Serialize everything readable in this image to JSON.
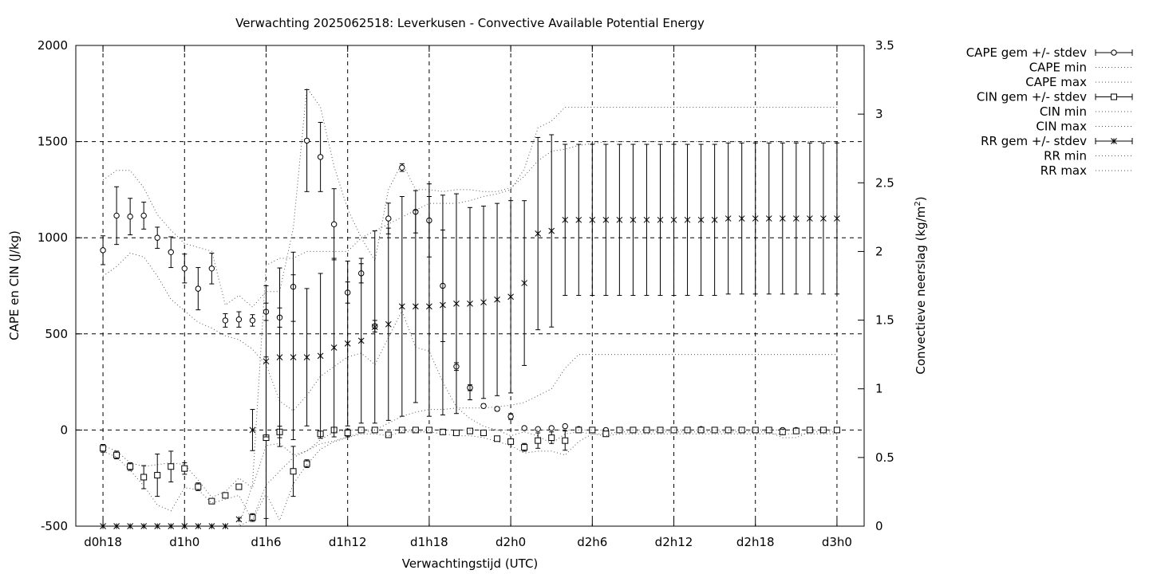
{
  "chart_data": {
    "type": "line",
    "title": "Verwachting 2025062518: Leverkusen - Convective Available Potential Energy",
    "xlabel": "Verwachtingstijd (UTC)",
    "ylabel": "CAPE en CIN (J/kg)",
    "y2label": "Convectieve neerslag (kg/m",
    "y2label_sup": "2",
    "y2label_end": ")",
    "xlim_hours": [
      -2,
      56
    ],
    "ylim": [
      -500,
      2000
    ],
    "y2lim": [
      0,
      3.5
    ],
    "grid": true,
    "legend_position": "top-right outside",
    "x_ticks": [
      {
        "h": 0,
        "label": "d0h18"
      },
      {
        "h": 6,
        "label": "d1h0"
      },
      {
        "h": 12,
        "label": "d1h6"
      },
      {
        "h": 18,
        "label": "d1h12"
      },
      {
        "h": 24,
        "label": "d1h18"
      },
      {
        "h": 30,
        "label": "d2h0"
      },
      {
        "h": 36,
        "label": "d2h6"
      },
      {
        "h": 42,
        "label": "d2h12"
      },
      {
        "h": 48,
        "label": "d2h18"
      },
      {
        "h": 54,
        "label": "d3h0"
      }
    ],
    "y_ticks": [
      "-500",
      "0",
      "500",
      "1000",
      "1500",
      "2000"
    ],
    "y2_ticks": [
      "0",
      "0.5",
      "1",
      "1.5",
      "2",
      "2.5",
      "3",
      "3.5"
    ],
    "x_hours": [
      0,
      1,
      2,
      3,
      4,
      5,
      6,
      7,
      8,
      9,
      10,
      11,
      12,
      13,
      14,
      15,
      16,
      17,
      18,
      19,
      20,
      21,
      22,
      23,
      24,
      25,
      26,
      27,
      28,
      29,
      30,
      31,
      32,
      33,
      34,
      35,
      36,
      37,
      38,
      39,
      40,
      41,
      42,
      43,
      44,
      45,
      46,
      47,
      48,
      49,
      50,
      51,
      52,
      53,
      54
    ],
    "series": [
      {
        "name": "CAPE gem +/- stdev",
        "axis": "y",
        "marker": "circle",
        "mean": [
          935,
          1115,
          1110,
          1115,
          1000,
          925,
          840,
          735,
          840,
          570,
          575,
          570,
          615,
          585,
          745,
          1505,
          1420,
          1070,
          715,
          815,
          540,
          1100,
          1365,
          1135,
          1090,
          750,
          330,
          220,
          125,
          110,
          70,
          10,
          5,
          10,
          20,
          5,
          0,
          0,
          0,
          0,
          0,
          0,
          0,
          0,
          5,
          0,
          0,
          0,
          0,
          0,
          0,
          0,
          0,
          0,
          0
        ],
        "err": [
          75,
          150,
          95,
          70,
          55,
          80,
          75,
          110,
          80,
          35,
          40,
          30,
          45,
          50,
          180,
          265,
          180,
          185,
          55,
          50,
          30,
          80,
          20,
          110,
          190,
          290,
          20,
          15,
          10,
          10,
          15,
          5,
          5,
          5,
          5,
          5,
          5,
          5,
          5,
          5,
          5,
          5,
          5,
          5,
          5,
          5,
          5,
          5,
          5,
          5,
          5,
          5,
          5,
          5,
          5
        ]
      },
      {
        "name": "CAPE min",
        "axis": "y",
        "values": [
          800,
          850,
          920,
          900,
          800,
          680,
          620,
          560,
          530,
          490,
          470,
          420,
          340,
          150,
          100,
          180,
          280,
          330,
          380,
          400,
          340,
          480,
          620,
          430,
          410,
          250,
          120,
          60,
          20,
          0,
          -30,
          -10,
          -30,
          -70,
          -20,
          -10,
          -20,
          -20,
          -10,
          -10,
          -10,
          -10,
          -10,
          -10,
          -10,
          -10,
          -10,
          -10,
          -10,
          -10,
          -40,
          -40,
          -10,
          -10,
          -10
        ]
      },
      {
        "name": "CAPE max",
        "axis": "y",
        "values": [
          1300,
          1350,
          1350,
          1260,
          1120,
          1040,
          970,
          950,
          930,
          650,
          700,
          640,
          720,
          720,
          1050,
          1780,
          1680,
          1370,
          1150,
          1000,
          880,
          1250,
          1390,
          1250,
          1250,
          1240,
          1250,
          1250,
          1240,
          1240,
          1260,
          1320,
          1400,
          1450,
          1460,
          1480,
          1490,
          1500,
          1500,
          1500,
          1500,
          1500,
          1500,
          1500,
          1500,
          1500,
          1500,
          1500,
          1500,
          1500,
          1500,
          1500,
          1500,
          1500,
          1500
        ]
      },
      {
        "name": "CIN gem +/- stdev",
        "axis": "y",
        "marker": "square",
        "mean": [
          -95,
          -130,
          -190,
          -245,
          -235,
          -190,
          -200,
          -295,
          -370,
          -340,
          -295,
          -455,
          -40,
          -10,
          -215,
          -175,
          -20,
          0,
          -15,
          0,
          0,
          -25,
          0,
          0,
          0,
          -10,
          -15,
          -5,
          -15,
          -45,
          -60,
          -90,
          -55,
          -40,
          -55,
          0,
          0,
          -20,
          0,
          0,
          0,
          0,
          0,
          0,
          0,
          0,
          0,
          0,
          0,
          0,
          -10,
          -5,
          0,
          0,
          0
        ],
        "err": [
          20,
          20,
          20,
          60,
          110,
          80,
          30,
          20,
          10,
          10,
          10,
          20,
          420,
          30,
          130,
          20,
          10,
          5,
          20,
          5,
          5,
          5,
          5,
          5,
          5,
          5,
          5,
          5,
          5,
          5,
          5,
          20,
          40,
          30,
          50,
          5,
          5,
          10,
          5,
          5,
          5,
          5,
          5,
          5,
          5,
          5,
          5,
          5,
          5,
          5,
          10,
          10,
          5,
          5,
          5
        ]
      },
      {
        "name": "CIN min",
        "axis": "y",
        "values": [
          -110,
          -140,
          -210,
          -290,
          -390,
          -420,
          -300,
          -310,
          -380,
          -360,
          -340,
          -470,
          -330,
          -470,
          -280,
          -180,
          -100,
          -60,
          -40,
          -20,
          -20,
          -30,
          -10,
          -10,
          -10,
          -20,
          -30,
          -30,
          -40,
          -60,
          -80,
          -120,
          -110,
          -110,
          -130,
          -60,
          -20,
          -30,
          -20,
          -20,
          -20,
          -20,
          -20,
          -20,
          -20,
          -20,
          -20,
          -20,
          -20,
          -20,
          -20,
          -20,
          -20,
          -20,
          -20
        ]
      },
      {
        "name": "CIN max",
        "axis": "y",
        "values": [
          -80,
          -110,
          -170,
          -190,
          -180,
          -170,
          -180,
          -260,
          -350,
          -320,
          -250,
          -300,
          -80,
          -70,
          -130,
          -110,
          -50,
          -10,
          0,
          0,
          0,
          0,
          0,
          0,
          0,
          0,
          0,
          0,
          0,
          0,
          0,
          0,
          0,
          0,
          0,
          0,
          0,
          0,
          0,
          0,
          0,
          0,
          0,
          0,
          0,
          0,
          0,
          0,
          0,
          0,
          0,
          0,
          0,
          0,
          0
        ]
      },
      {
        "name": "RR gem +/- stdev",
        "axis": "y2",
        "marker": "star",
        "mean": [
          0,
          0,
          0,
          0,
          0,
          0,
          0,
          0,
          0,
          0,
          0.05,
          0.7,
          1.2,
          1.23,
          1.23,
          1.23,
          1.24,
          1.3,
          1.33,
          1.35,
          1.45,
          1.47,
          1.6,
          1.6,
          1.6,
          1.61,
          1.62,
          1.62,
          1.63,
          1.65,
          1.67,
          1.77,
          2.13,
          2.15,
          2.23,
          2.23,
          2.23,
          2.23,
          2.23,
          2.23,
          2.23,
          2.23,
          2.23,
          2.23,
          2.23,
          2.23,
          2.24,
          2.24,
          2.24,
          2.24,
          2.24,
          2.24,
          2.24,
          2.24,
          2.24
        ],
        "err": [
          0,
          0,
          0,
          0,
          0,
          0,
          0,
          0,
          0,
          0,
          0,
          0.15,
          0.55,
          0.65,
          0.6,
          0.5,
          0.6,
          0.65,
          0.6,
          0.6,
          0.7,
          0.7,
          0.8,
          0.7,
          0.8,
          0.8,
          0.8,
          0.7,
          0.7,
          0.7,
          0.7,
          0.6,
          0.7,
          0.7,
          0.55,
          0.55,
          0.55,
          0.55,
          0.55,
          0.55,
          0.55,
          0.55,
          0.55,
          0.55,
          0.55,
          0.55,
          0.55,
          0.55,
          0.55,
          0.55,
          0.55,
          0.55,
          0.55,
          0.55,
          0.55
        ]
      },
      {
        "name": "RR min",
        "axis": "y2",
        "values": [
          0,
          0,
          0,
          0,
          0,
          0,
          0,
          0,
          0,
          0,
          0,
          0.05,
          0.3,
          0.4,
          0.5,
          0.55,
          0.6,
          0.62,
          0.65,
          0.68,
          0.7,
          0.75,
          0.8,
          0.83,
          0.85,
          0.85,
          0.86,
          0.86,
          0.86,
          0.87,
          0.88,
          0.9,
          0.95,
          1.0,
          1.15,
          1.25,
          1.25,
          1.25,
          1.25,
          1.25,
          1.25,
          1.25,
          1.25,
          1.25,
          1.25,
          1.25,
          1.25,
          1.25,
          1.25,
          1.25,
          1.25,
          1.25,
          1.25,
          1.25,
          1.25
        ]
      },
      {
        "name": "RR max",
        "axis": "y2",
        "values": [
          0,
          0,
          0,
          0,
          0,
          0,
          0,
          0,
          0,
          0,
          0,
          0.3,
          1.9,
          1.95,
          1.95,
          2.0,
          2.0,
          2.0,
          2.0,
          2.1,
          2.15,
          2.2,
          2.25,
          2.3,
          2.35,
          2.35,
          2.35,
          2.37,
          2.4,
          2.42,
          2.45,
          2.6,
          2.9,
          2.95,
          3.05,
          3.05,
          3.05,
          3.05,
          3.05,
          3.05,
          3.05,
          3.05,
          3.05,
          3.05,
          3.05,
          3.05,
          3.05,
          3.05,
          3.05,
          3.05,
          3.05,
          3.05,
          3.05,
          3.05,
          3.05
        ]
      }
    ]
  }
}
